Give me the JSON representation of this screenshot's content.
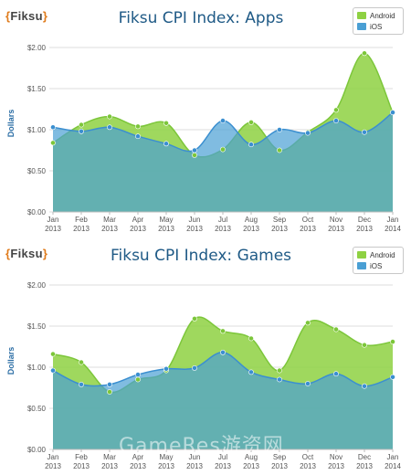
{
  "brand": {
    "left_brace": "{",
    "name": "Fiksu",
    "right_brace": "}"
  },
  "watermark": "GameRes游资网",
  "colors": {
    "android": "#8ed142",
    "ios": "#4a9fd4",
    "overlap": "#6bb8a8",
    "android_line": "#7cc63a",
    "ios_line": "#3b8fd0"
  },
  "chart_data": [
    {
      "type": "area",
      "title": "Fiksu CPI Index: Apps",
      "ylabel": "Dollars",
      "xlabel": "",
      "ylim": [
        0,
        2
      ],
      "yticks": [
        "$0.00",
        "$0.50",
        "$1.00",
        "$1.50",
        "$2.00"
      ],
      "legend_position": "top-right",
      "categories": [
        [
          "Jan",
          "2013"
        ],
        [
          "Feb",
          "2013"
        ],
        [
          "Mar",
          "2013"
        ],
        [
          "Apr",
          "2013"
        ],
        [
          "May",
          "2013"
        ],
        [
          "Jun",
          "2013"
        ],
        [
          "Jul",
          "2013"
        ],
        [
          "Aug",
          "2013"
        ],
        [
          "Sep",
          "2013"
        ],
        [
          "Oct",
          "2013"
        ],
        [
          "Nov",
          "2013"
        ],
        [
          "Dec",
          "2013"
        ],
        [
          "Jan",
          "2014"
        ]
      ],
      "series": [
        {
          "name": "Android",
          "values": [
            0.84,
            1.06,
            1.16,
            1.04,
            1.08,
            0.69,
            0.76,
            1.09,
            0.75,
            0.97,
            1.24,
            1.93,
            1.21
          ]
        },
        {
          "name": "iOS",
          "values": [
            1.03,
            0.98,
            1.03,
            0.92,
            0.83,
            0.75,
            1.11,
            0.82,
            1.0,
            0.96,
            1.11,
            0.97,
            1.21
          ]
        }
      ]
    },
    {
      "type": "area",
      "title": "Fiksu CPI Index: Games",
      "ylabel": "Dollars",
      "xlabel": "",
      "ylim": [
        0,
        2
      ],
      "yticks": [
        "$0.00",
        "$0.50",
        "$1.00",
        "$1.50",
        "$2.00"
      ],
      "legend_position": "top-right",
      "categories": [
        [
          "Jan",
          "2013"
        ],
        [
          "Feb",
          "2013"
        ],
        [
          "Mar",
          "2013"
        ],
        [
          "Apr",
          "2013"
        ],
        [
          "May",
          "2013"
        ],
        [
          "Jun",
          "2013"
        ],
        [
          "Jul",
          "2013"
        ],
        [
          "Aug",
          "2013"
        ],
        [
          "Sep",
          "2013"
        ],
        [
          "Oct",
          "2013"
        ],
        [
          "Nov",
          "2013"
        ],
        [
          "Dec",
          "2013"
        ],
        [
          "Jan",
          "2014"
        ]
      ],
      "series": [
        {
          "name": "Android",
          "values": [
            1.16,
            1.06,
            0.7,
            0.85,
            0.96,
            1.59,
            1.44,
            1.35,
            0.96,
            1.54,
            1.46,
            1.27,
            1.31
          ]
        },
        {
          "name": "iOS",
          "values": [
            0.96,
            0.79,
            0.79,
            0.91,
            0.98,
            0.99,
            1.18,
            0.94,
            0.85,
            0.8,
            0.92,
            0.77,
            0.88
          ]
        }
      ]
    }
  ]
}
